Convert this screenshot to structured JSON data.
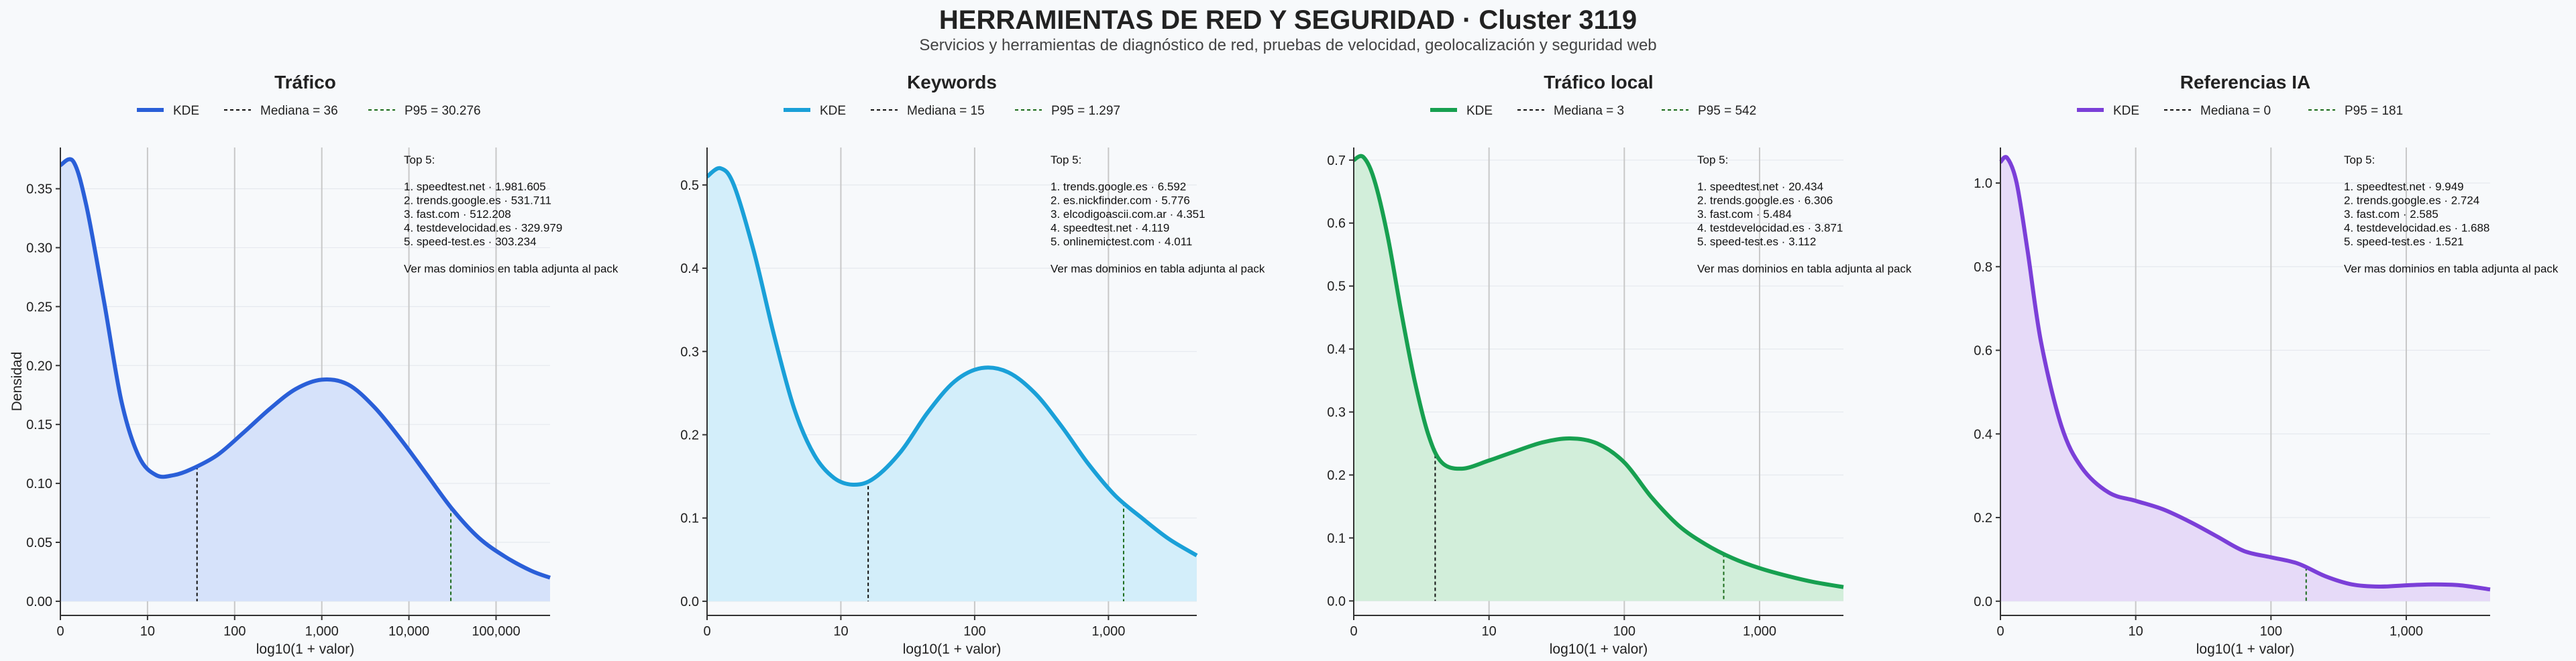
{
  "page": {
    "title": "HERRAMIENTAS DE RED Y SEGURIDAD · Cluster 3119",
    "subtitle": "Servicios y herramientas de diagnóstico de red, pruebas de velocidad, geolocalización y seguridad web"
  },
  "shared": {
    "ylabel": "Densidad",
    "xlabel": "log10(1 + valor)",
    "legend_kde": "KDE",
    "footnote": "Ver mas dominios en tabla adjunta al pack",
    "top_title": "Top 5:"
  },
  "chart_data": [
    {
      "type": "area",
      "title": "Tráfico",
      "color": "#2a5fd8",
      "fill": "#d6e2fa",
      "median_label": "Mediana = 36",
      "p95_label": "P95 = 30.276",
      "median": 36,
      "p95": 30276,
      "xlim": [
        0,
        5.62
      ],
      "ylim": [
        -0.012,
        0.385
      ],
      "yticks": [
        0.0,
        0.05,
        0.1,
        0.15,
        0.2,
        0.25,
        0.3,
        0.35
      ],
      "ytick_labels": [
        "0.00",
        "0.05",
        "0.10",
        "0.15",
        "0.20",
        "0.25",
        "0.30",
        "0.35"
      ],
      "xticks": [
        0,
        1,
        2,
        3,
        4,
        5
      ],
      "xtick_labels": [
        "0",
        "10",
        "100",
        "1,000",
        "10,000",
        "100,000"
      ],
      "x": [
        0,
        0.15,
        0.3,
        0.5,
        0.7,
        0.9,
        1.1,
        1.3,
        1.5,
        1.8,
        2.1,
        2.4,
        2.7,
        3.0,
        3.3,
        3.6,
        3.9,
        4.2,
        4.5,
        4.8,
        5.1,
        5.4,
        5.62
      ],
      "y": [
        0.37,
        0.373,
        0.335,
        0.255,
        0.17,
        0.123,
        0.107,
        0.107,
        0.112,
        0.124,
        0.143,
        0.163,
        0.18,
        0.188,
        0.184,
        0.165,
        0.138,
        0.108,
        0.078,
        0.054,
        0.038,
        0.026,
        0.02
      ],
      "top5": [
        "1. speedtest.net · 1.981.605",
        "2. trends.google.es · 531.711",
        "3. fast.com · 512.208",
        "4. testdevelocidad.es · 329.979",
        "5. speed-test.es · 303.234"
      ]
    },
    {
      "type": "area",
      "title": "Keywords",
      "color": "#1aa0d8",
      "fill": "#d3eefa",
      "median_label": "Mediana = 15",
      "p95_label": "P95 = 1.297",
      "median": 15,
      "p95": 1297,
      "xlim": [
        0,
        3.66
      ],
      "ylim": [
        -0.017,
        0.545
      ],
      "yticks": [
        0.0,
        0.1,
        0.2,
        0.3,
        0.4,
        0.5
      ],
      "ytick_labels": [
        "0.0",
        "0.1",
        "0.2",
        "0.3",
        "0.4",
        "0.5"
      ],
      "xticks": [
        0,
        1,
        2,
        3
      ],
      "xtick_labels": [
        "0",
        "10",
        "100",
        "1,000"
      ],
      "x": [
        0,
        0.1,
        0.2,
        0.35,
        0.5,
        0.65,
        0.8,
        0.95,
        1.1,
        1.25,
        1.45,
        1.65,
        1.85,
        2.05,
        2.25,
        2.45,
        2.65,
        2.85,
        3.05,
        3.25,
        3.45,
        3.66
      ],
      "y": [
        0.51,
        0.52,
        0.5,
        0.42,
        0.32,
        0.232,
        0.176,
        0.148,
        0.14,
        0.148,
        0.18,
        0.227,
        0.264,
        0.28,
        0.275,
        0.25,
        0.21,
        0.165,
        0.127,
        0.1,
        0.075,
        0.055
      ],
      "top5": [
        "1. trends.google.es · 6.592",
        "2. es.nickfinder.com · 5.776",
        "3. elcodigoascii.com.ar · 4.351",
        "4. speedtest.net · 4.119",
        "5. onlinemictest.com · 4.011"
      ]
    },
    {
      "type": "area",
      "title": "Tráfico local",
      "color": "#17a050",
      "fill": "#d2eeda",
      "median_label": "Mediana = 3",
      "p95_label": "P95 = 542",
      "median": 3,
      "p95": 542,
      "xlim": [
        0,
        3.62
      ],
      "ylim": [
        -0.023,
        0.72
      ],
      "yticks": [
        0.0,
        0.1,
        0.2,
        0.3,
        0.4,
        0.5,
        0.6,
        0.7
      ],
      "ytick_labels": [
        "0.0",
        "0.1",
        "0.2",
        "0.3",
        "0.4",
        "0.5",
        "0.6",
        "0.7"
      ],
      "xticks": [
        0,
        1,
        2,
        3
      ],
      "xtick_labels": [
        "0",
        "10",
        "100",
        "1,000"
      ],
      "x": [
        0,
        0.07,
        0.15,
        0.25,
        0.35,
        0.45,
        0.55,
        0.65,
        0.8,
        1.0,
        1.2,
        1.4,
        1.6,
        1.8,
        2.0,
        2.2,
        2.4,
        2.6,
        2.8,
        3.0,
        3.2,
        3.4,
        3.62
      ],
      "y": [
        0.7,
        0.705,
        0.67,
        0.58,
        0.46,
        0.35,
        0.265,
        0.22,
        0.21,
        0.223,
        0.238,
        0.252,
        0.258,
        0.25,
        0.22,
        0.165,
        0.12,
        0.09,
        0.068,
        0.052,
        0.04,
        0.03,
        0.022
      ],
      "top5": [
        "1. speedtest.net · 20.434",
        "2. trends.google.es · 6.306",
        "3. fast.com · 5.484",
        "4. testdevelocidad.es · 3.871",
        "5. speed-test.es · 3.112"
      ]
    },
    {
      "type": "area",
      "title": "Referencias IA",
      "color": "#7b3fd8",
      "fill": "#e6daf8",
      "median_label": "Mediana = 0",
      "p95_label": "P95 = 181",
      "median": 0,
      "p95": 181,
      "xlim": [
        0,
        3.62
      ],
      "ylim": [
        -0.034,
        1.085
      ],
      "yticks": [
        0.0,
        0.2,
        0.4,
        0.6,
        0.8,
        1.0
      ],
      "ytick_labels": [
        "0.0",
        "0.2",
        "0.4",
        "0.6",
        "0.8",
        "1.0"
      ],
      "xticks": [
        0,
        1,
        2,
        3
      ],
      "xtick_labels": [
        "0",
        "10",
        "100",
        "1,000"
      ],
      "x": [
        0,
        0.05,
        0.12,
        0.2,
        0.3,
        0.45,
        0.6,
        0.8,
        1.0,
        1.2,
        1.4,
        1.6,
        1.8,
        2.0,
        2.2,
        2.4,
        2.6,
        2.8,
        3.0,
        3.2,
        3.4,
        3.62
      ],
      "y": [
        1.05,
        1.06,
        1.0,
        0.84,
        0.62,
        0.42,
        0.32,
        0.26,
        0.24,
        0.22,
        0.19,
        0.155,
        0.12,
        0.105,
        0.09,
        0.06,
        0.04,
        0.035,
        0.038,
        0.04,
        0.038,
        0.028
      ],
      "top5": [
        "1. speedtest.net · 9.949",
        "2. trends.google.es · 2.724",
        "3. fast.com · 2.585",
        "4. testdevelocidad.es · 1.688",
        "5. speed-test.es · 1.521"
      ]
    }
  ]
}
